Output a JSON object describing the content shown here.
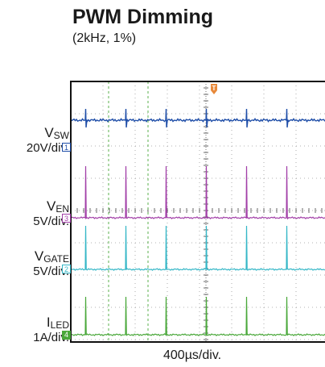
{
  "chart_data": {
    "type": "line",
    "title": "PWM Dimming",
    "subtitle": "(2kHz, 1%)",
    "xlabel": "400µs/div.",
    "time_per_div_us": 400,
    "pulse_period_us": 500,
    "duty_cycle_percent": 1,
    "trigger_marker": "T",
    "channels": [
      {
        "name": "V",
        "sub": "SW",
        "scale": "20V/div.",
        "marker": "1",
        "color": "#1f4ea8"
      },
      {
        "name": "V",
        "sub": "EN",
        "scale": "5V/div.",
        "marker": "3",
        "color": "#a23fa8"
      },
      {
        "name": "V",
        "sub": "GATE",
        "scale": "5V/div.",
        "marker": "2",
        "color": "#35b7c7"
      },
      {
        "name": "I",
        "sub": "LED",
        "scale": "1A/div.",
        "marker": "4",
        "color": "#4aa83a"
      }
    ],
    "grid": true
  }
}
